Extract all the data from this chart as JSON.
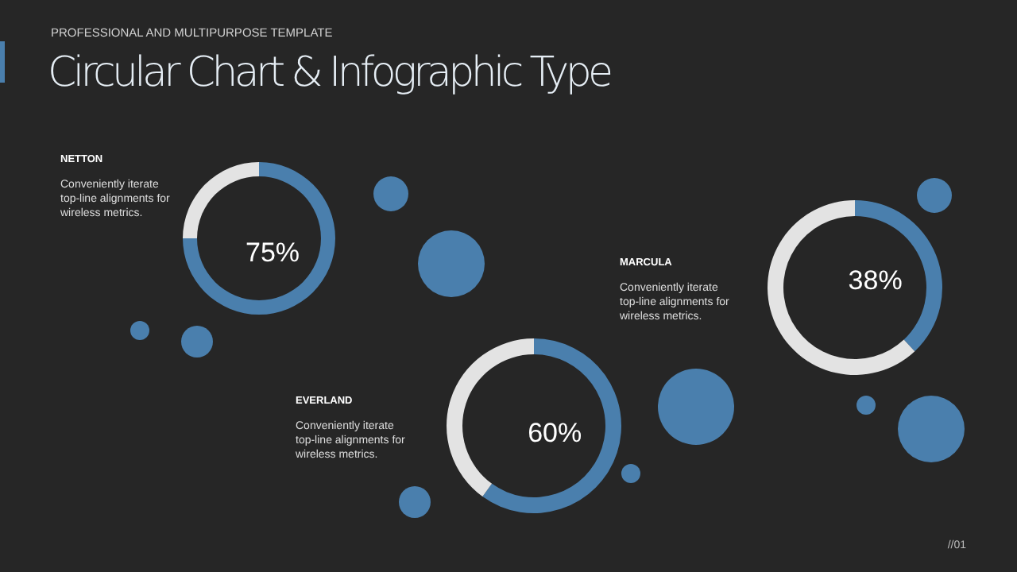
{
  "chart_data": [
    {
      "type": "other",
      "title": "Circular Chart & Infographic Type",
      "subtitle": "PROFESSIONAL AND MULTIPURPOSE  TEMPLATE",
      "annotations": [
        "//01"
      ]
    },
    {
      "type": "donut",
      "title": "NETTON",
      "subtitle": "Conveniently iterate top-line alignments for wireless metrics.",
      "categories": [
        null,
        null
      ],
      "values": [
        75,
        25
      ],
      "colors": [
        "#4a7fad",
        "#e3e3e3"
      ],
      "value_labels": [
        "75%",
        null
      ]
    },
    {
      "type": "donut",
      "title": "EVERLAND",
      "subtitle": "Conveniently iterate top-line alignments for wireless metrics.",
      "categories": [
        null,
        null
      ],
      "values": [
        60,
        40
      ],
      "colors": [
        "#4a7fad",
        "#e3e3e3"
      ],
      "value_labels": [
        "60%",
        null
      ]
    },
    {
      "type": "donut",
      "title": "MARCULA",
      "subtitle": "Conveniently iterate top-line alignments for wireless metrics.",
      "categories": [
        null,
        null
      ],
      "values": [
        38,
        62
      ],
      "colors": [
        "#4a7fad",
        "#e3e3e3"
      ],
      "value_labels": [
        "38%",
        null
      ]
    }
  ]
}
